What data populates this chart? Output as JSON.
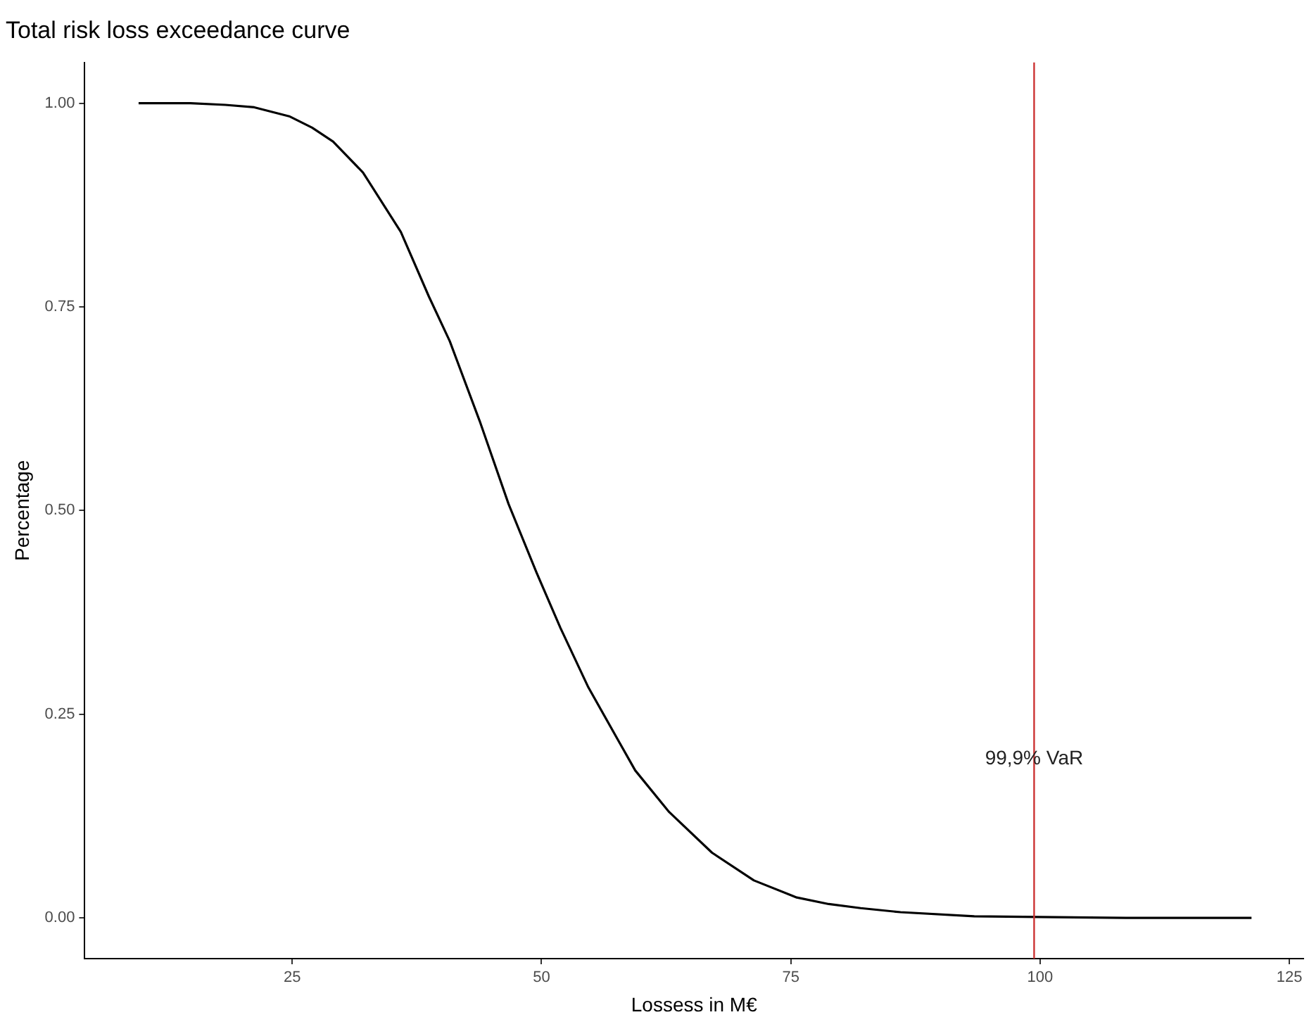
{
  "chart_data": {
    "type": "line",
    "title": "Total risk loss exceedance curve",
    "xlabel": "Lossess in M€",
    "ylabel": "Percentage",
    "x": [
      9.6,
      14.8,
      18.3,
      21.2,
      24.7,
      27,
      29.1,
      32.1,
      35.9,
      38.7,
      40.8,
      43.8,
      46.7,
      49.5,
      51.9,
      54.7,
      57.6,
      59.4,
      62.8,
      67.1,
      71.3,
      75.6,
      78.8,
      82,
      86,
      93.4,
      100,
      108.6,
      121.2
    ],
    "series": [
      {
        "color": "#000000",
        "values": [
          1.0,
          1.0,
          0.998,
          0.995,
          0.984,
          0.97,
          0.953,
          0.915,
          0.842,
          0.763,
          0.708,
          0.61,
          0.508,
          0.424,
          0.356,
          0.283,
          0.22,
          0.181,
          0.13,
          0.08,
          0.046,
          0.025,
          0.017,
          0.012,
          0.007,
          0.002,
          0.001,
          0,
          0
        ]
      }
    ],
    "xlim": [
      4.2,
      126.4
    ],
    "xticks": [
      25,
      50,
      75,
      100,
      125
    ],
    "ylim": [
      -0.05,
      1.05
    ],
    "yticks": [
      {
        "value": 0,
        "label": "0.00"
      },
      {
        "value": 0.25,
        "label": "0.25"
      },
      {
        "value": 0.5,
        "label": "0.50"
      },
      {
        "value": 0.75,
        "label": "0.75"
      },
      {
        "value": 1,
        "label": "1.00"
      }
    ],
    "ref_lines": [
      {
        "axis": "x",
        "value": 99.4,
        "color": "#cc3333"
      }
    ],
    "annotations": [
      {
        "text": "99,9% VaR",
        "x": 99.4,
        "y": 0.195
      }
    ],
    "grid": false,
    "legend": false,
    "marker": "none",
    "line_style": "solid"
  }
}
